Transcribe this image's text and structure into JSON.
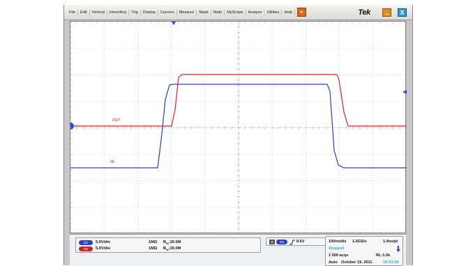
{
  "menu": {
    "items": [
      "File",
      "Edit",
      "Vertical",
      "Horiz/Acq",
      "Trig",
      "Display",
      "Cursors",
      "Measure",
      "Mask",
      "Math",
      "MyScope",
      "Analyze",
      "Utilities",
      "Help"
    ],
    "brand": "Tek"
  },
  "window": {
    "close_label": "X"
  },
  "waveforms": {
    "out": {
      "label": "OUT",
      "color": "#e02020"
    },
    "in": {
      "label": "IN",
      "color": "#1f3fd8"
    }
  },
  "markers": {
    "ch1_ground": "1"
  },
  "channels": [
    {
      "badge": "C1",
      "scale": "5.0V/div",
      "impedance": "1MΩ",
      "bw_prefix": "B",
      "bw_sub": "W",
      "bw_value": ":20.0M",
      "color": "#2a3fd0"
    },
    {
      "badge": "C2",
      "scale": "5.0V/div",
      "impedance": "1MΩ",
      "bw_prefix": "B",
      "bw_sub": "W",
      "bw_value": ":20.0M",
      "color": "#d82020"
    }
  ],
  "trigger": {
    "mode_badge": "A",
    "source_badge": "C1",
    "level": "8.6V"
  },
  "acquisition": {
    "timebase": "100ns/div",
    "sample_rate": "1.0GS/s",
    "resolution": "1.0ns/pt",
    "state": "Stopped",
    "acqs": "1 500 acqs",
    "record_length": "RL:1.0k",
    "mode": "Auto",
    "date": "October 19, 2011",
    "time": "18:33:38"
  }
}
